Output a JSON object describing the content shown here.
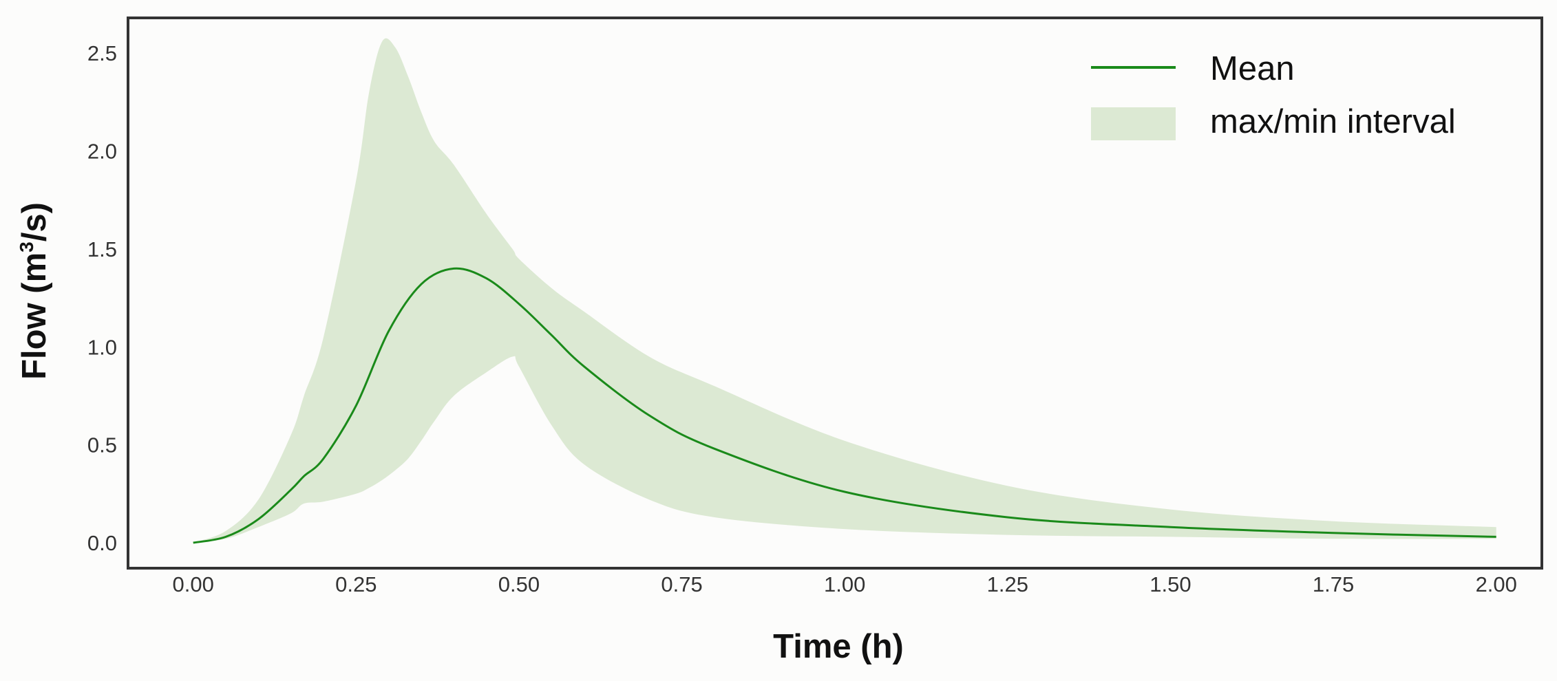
{
  "chart_data": {
    "type": "area",
    "xlabel": "Time (h)",
    "ylabel": {
      "base": "Flow (m",
      "sup": "3",
      "tail": "/s)"
    },
    "xlim": [
      -0.1,
      2.07
    ],
    "ylim": [
      -0.13,
      2.68
    ],
    "xticks": [
      "0.00",
      "0.25",
      "0.50",
      "0.75",
      "1.00",
      "1.25",
      "1.50",
      "1.75",
      "2.00"
    ],
    "yticks": [
      "0.0",
      "0.5",
      "1.0",
      "1.5",
      "2.0",
      "2.5"
    ],
    "grid": false,
    "legend_position": "top-right",
    "colors": {
      "mean": "#1a8a1a",
      "band": "#dce9d3",
      "frame": "#333333"
    },
    "series": [
      {
        "name": "Mean",
        "kind": "line",
        "x": [
          0.0,
          0.05,
          0.1,
          0.15,
          0.17,
          0.2,
          0.25,
          0.3,
          0.35,
          0.4,
          0.45,
          0.5,
          0.55,
          0.6,
          0.7,
          0.8,
          1.0,
          1.25,
          1.5,
          1.75,
          2.0
        ],
        "y": [
          0.0,
          0.03,
          0.12,
          0.27,
          0.34,
          0.43,
          0.7,
          1.08,
          1.32,
          1.4,
          1.35,
          1.22,
          1.06,
          0.9,
          0.65,
          0.48,
          0.26,
          0.13,
          0.08,
          0.05,
          0.03
        ]
      },
      {
        "name": "max/min interval",
        "kind": "band",
        "x": [
          0.0,
          0.05,
          0.1,
          0.15,
          0.17,
          0.2,
          0.25,
          0.27,
          0.29,
          0.31,
          0.33,
          0.35,
          0.37,
          0.4,
          0.45,
          0.49,
          0.5,
          0.55,
          0.6,
          0.7,
          0.8,
          1.0,
          1.25,
          1.5,
          1.75,
          2.0
        ],
        "upper": [
          0.0,
          0.06,
          0.22,
          0.55,
          0.75,
          1.05,
          1.85,
          2.3,
          2.56,
          2.53,
          2.38,
          2.2,
          2.05,
          1.93,
          1.68,
          1.5,
          1.45,
          1.3,
          1.18,
          0.95,
          0.8,
          0.52,
          0.29,
          0.17,
          0.11,
          0.08
        ],
        "lower": [
          0.0,
          0.02,
          0.08,
          0.15,
          0.2,
          0.21,
          0.25,
          0.28,
          0.32,
          0.37,
          0.43,
          0.52,
          0.62,
          0.75,
          0.87,
          0.95,
          0.9,
          0.6,
          0.4,
          0.22,
          0.13,
          0.07,
          0.04,
          0.03,
          0.02,
          0.02
        ]
      }
    ]
  }
}
